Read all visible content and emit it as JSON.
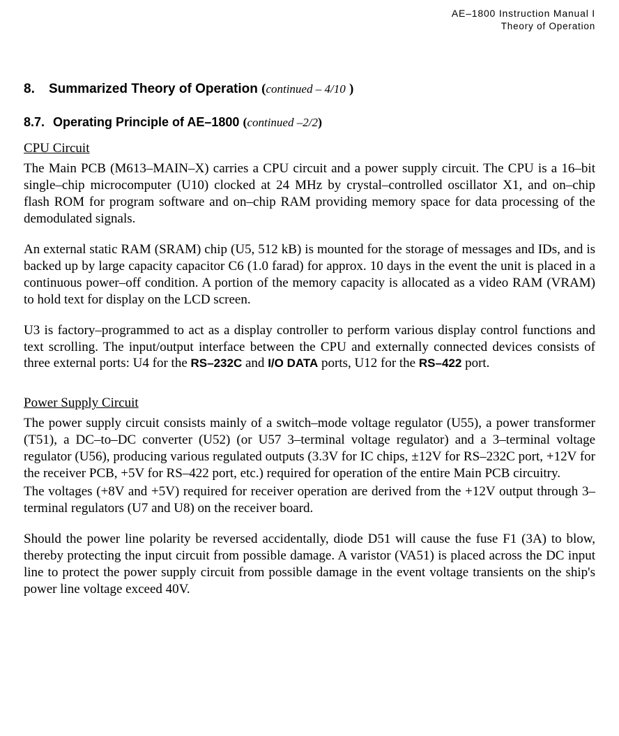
{
  "header": {
    "line1": "AE–1800 Instruction Manual I",
    "line2": "Theory of Operation"
  },
  "h1": {
    "num": "8.",
    "title": "Summarized Theory of Operation",
    "cont": "continued – 4/10"
  },
  "h2": {
    "num": "8.7.",
    "title": "Operating Principle of AE–1800",
    "cont": "continued –2/2"
  },
  "section1": {
    "heading": "CPU Circuit",
    "p1": "The Main PCB (M613–MAIN–X) carries a CPU circuit and a power supply circuit. The CPU is a 16–bit single–chip microcomputer (U10) clocked at 24 MHz by crystal–controlled oscillator X1, and on–chip flash ROM for program software and on–chip RAM providing memory space for data processing of the demodulated signals.",
    "p2": "An external static RAM (SRAM) chip (U5, 512 kB) is mounted for the storage of messages and IDs, and is backed up by large capacity capacitor C6 (1.0 farad) for approx. 10 days in the event the unit is placed in a continuous power–off condition. A portion of the memory capacity is allocated as a video RAM (VRAM) to hold text for display on the LCD screen.",
    "p3_a": "U3 is factory–programmed to act as a display controller to perform various display control functions and text scrolling. The input/output interface between the CPU and externally connected devices consists of three external ports: U4 for the ",
    "p3_rs232": "RS–232C",
    "p3_b": " and ",
    "p3_io": "I/O DATA",
    "p3_c": " ports, U12 for the ",
    "p3_rs422": "RS–422",
    "p3_d": " port."
  },
  "section2": {
    "heading": "Power Supply Circuit",
    "p1": "The power supply circuit consists mainly of a switch–mode voltage regulator (U55), a power transformer (T51), a DC–to–DC converter (U52) (or U57 3–terminal voltage regulator) and a 3–terminal voltage regulator (U56), producing various regulated outputs (3.3V for IC chips, ±12V for RS–232C port, +12V for the receiver PCB, +5V for RS–422 port, etc.) required for operation of the entire Main PCB circuitry.",
    "p2": "The voltages (+8V and +5V) required for receiver operation are derived from the +12V output through 3–terminal regulators (U7 and U8) on the receiver board.",
    "p3": "Should the power line polarity be reversed accidentally, diode D51 will cause the fuse F1 (3A) to blow, thereby protecting the input circuit from possible damage. A varistor (VA51) is placed across the DC input line to protect the power supply circuit from possible damage in the event voltage transients on the ship's power line voltage exceed 40V."
  }
}
